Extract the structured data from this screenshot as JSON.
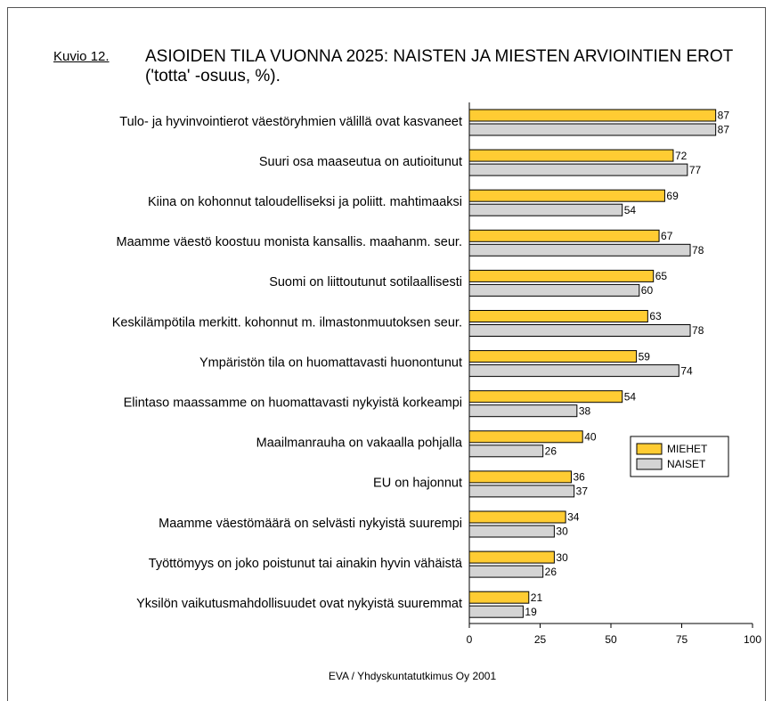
{
  "chart_data": {
    "type": "bar",
    "orientation": "horizontal",
    "figure_label": "Kuvio 12.",
    "title": "ASIOIDEN TILA VUONNA 2025: NAISTEN JA MIESTEN ARVIOINTIEN EROT ('totta' -osuus, %).",
    "source": "EVA / Yhdyskuntatutkimus Oy 2001",
    "categories": [
      "Tulo- ja hyvinvointierot väestöryhmien välillä ovat kasvaneet",
      "Suuri osa maaseutua on autioitunut",
      "Kiina on kohonnut taloudelliseksi ja poliitt. mahtimaaksi",
      "Maamme väestö koostuu monista kansallis. maahanm. seur.",
      "Suomi on liittoutunut sotilaallisesti",
      "Keskilämpötila merkitt. kohonnut m. ilmastonmuutoksen seur.",
      "Ympäristön tila on huomattavasti huonontunut",
      "Elintaso maassamme on huomattavasti nykyistä korkeampi",
      "Maailmanrauha on vakaalla pohjalla",
      "EU on hajonnut",
      "Maamme väestömäärä on selvästi nykyistä suurempi",
      "Työttömyys on joko poistunut tai ainakin hyvin vähäistä",
      "Yksilön vaikutusmahdollisuudet ovat nykyistä suuremmat"
    ],
    "series": [
      {
        "name": "MIEHET",
        "color": "#ffcc33",
        "values": [
          87,
          72,
          69,
          67,
          65,
          63,
          59,
          54,
          40,
          36,
          34,
          30,
          21
        ]
      },
      {
        "name": "NAISET",
        "color": "#d4d4d4",
        "values": [
          87,
          77,
          54,
          78,
          60,
          78,
          74,
          38,
          26,
          37,
          30,
          26,
          19
        ]
      }
    ],
    "xlim": [
      0,
      100
    ],
    "xticks": [
      0,
      25,
      50,
      75,
      100
    ],
    "legend": "right"
  }
}
